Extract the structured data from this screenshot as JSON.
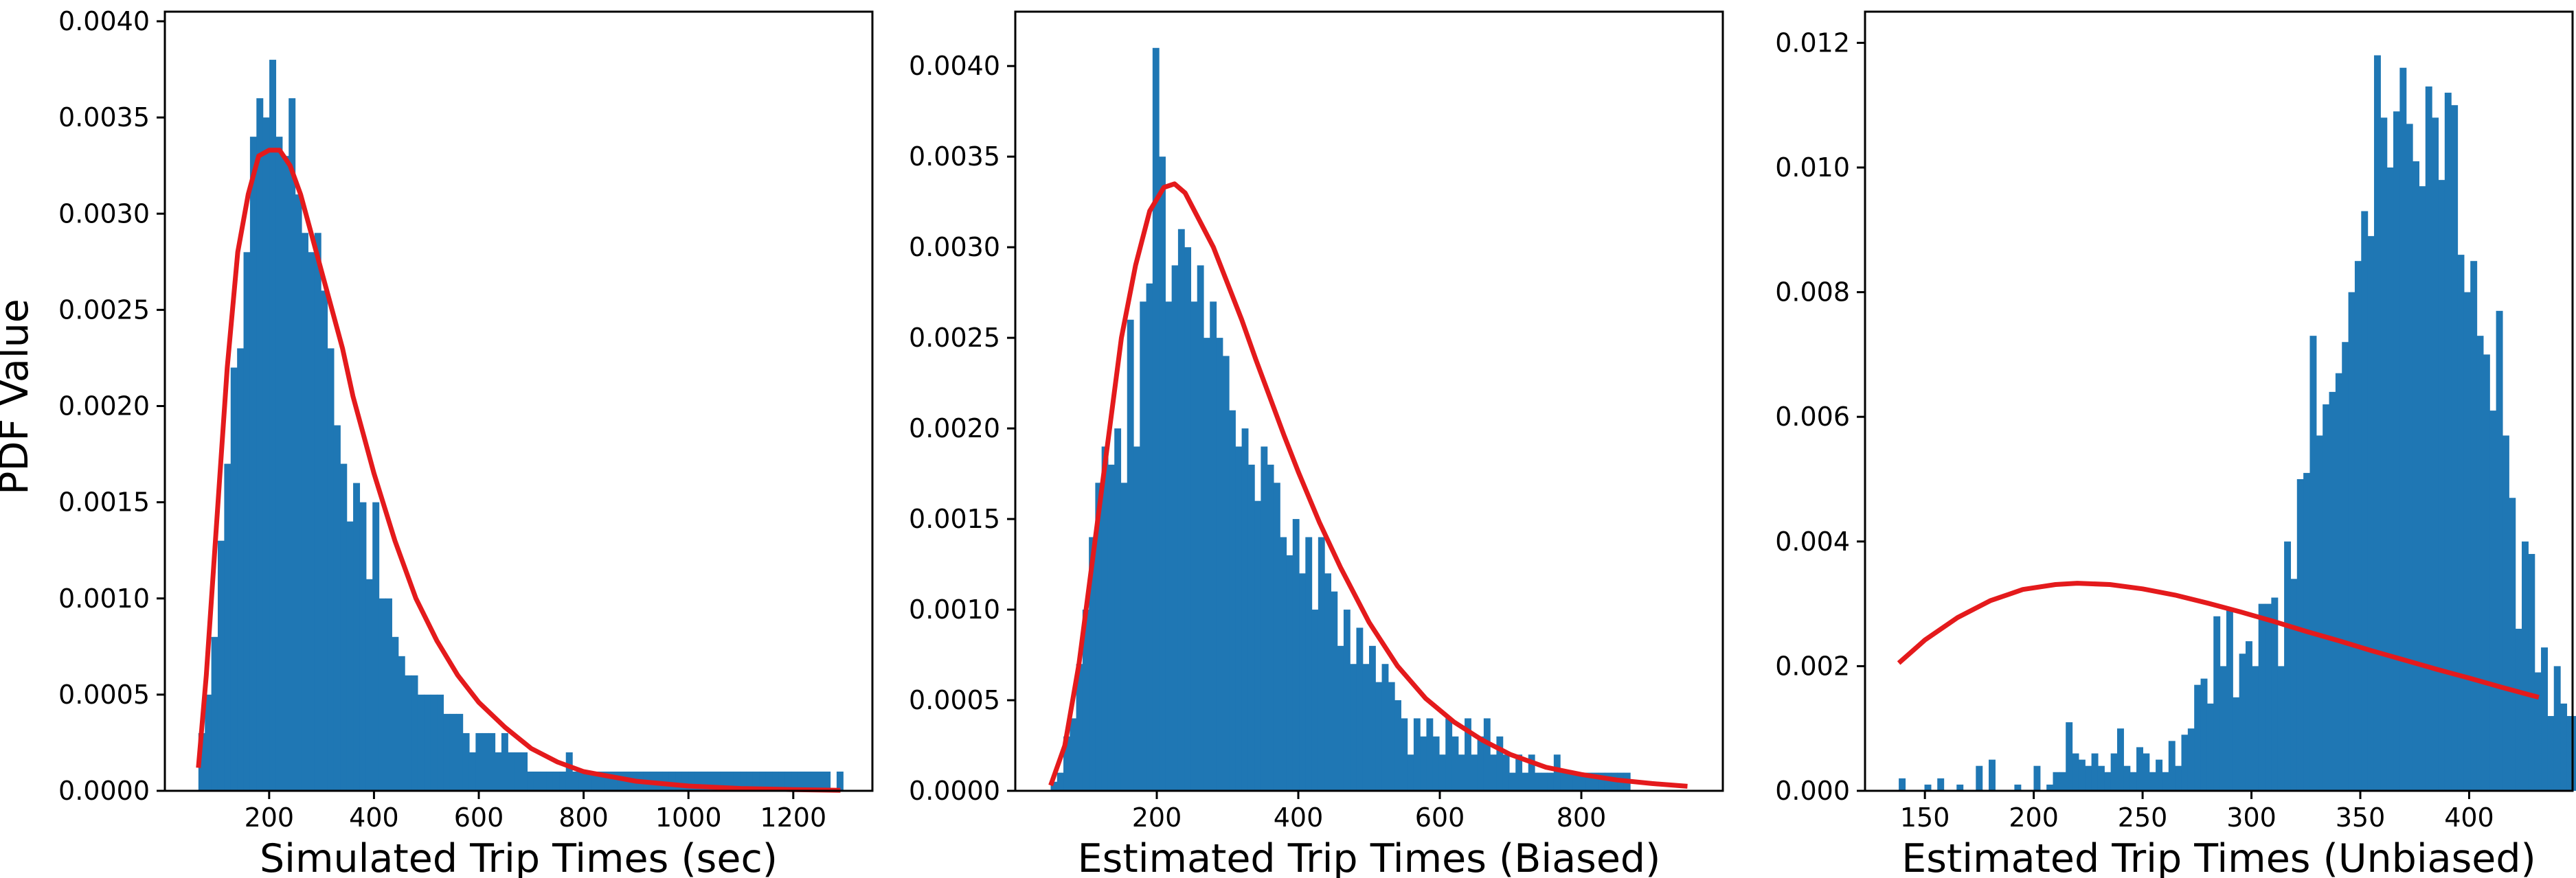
{
  "figure": {
    "ylabel": "PDF Value",
    "colors": {
      "bars": "#1f77b4",
      "curve": "#e41a1c",
      "frame": "#000000"
    }
  },
  "chart_data": [
    {
      "type": "bar",
      "xlabel": "Simulated Trip Times (sec)",
      "ylabel": "PDF Value",
      "xlim": [
        1,
        1351
      ],
      "ylim": [
        0,
        0.00405
      ],
      "xticks": [
        200,
        400,
        600,
        800,
        1000,
        1200
      ],
      "xtick_labels": [
        "200",
        "400",
        "600",
        "800",
        "1000",
        "1200"
      ],
      "yticks": [
        0,
        0.0005,
        0.001,
        0.0015,
        0.002,
        0.0025,
        0.003,
        0.0035,
        0.004
      ],
      "ytick_labels": [
        "0.0000",
        "0.0005",
        "0.0010",
        "0.0015",
        "0.0020",
        "0.0025",
        "0.0030",
        "0.0035",
        "0.0040"
      ],
      "bins": {
        "start": 65,
        "width": 12.3
      },
      "values": [
        0.0003,
        0.0005,
        0.0008,
        0.0013,
        0.0017,
        0.0022,
        0.0023,
        0.0028,
        0.0034,
        0.0036,
        0.0035,
        0.0038,
        0.0034,
        0.0033,
        0.0036,
        0.0031,
        0.0029,
        0.0028,
        0.0029,
        0.0026,
        0.0023,
        0.0019,
        0.0017,
        0.0014,
        0.0016,
        0.0015,
        0.0011,
        0.0015,
        0.001,
        0.001,
        0.0008,
        0.0007,
        0.0006,
        0.0006,
        0.0005,
        0.0005,
        0.0005,
        0.0005,
        0.0004,
        0.0004,
        0.0004,
        0.0003,
        0.0002,
        0.0003,
        0.0003,
        0.0003,
        0.0002,
        0.0003,
        0.0002,
        0.0002,
        0.0002,
        0.0001,
        0.0001,
        0.0001,
        0.0001,
        0.0001,
        0.0001,
        0.0002,
        0.0001,
        0.0001,
        0.0001,
        0.0001,
        0.0001,
        0.0001,
        0.0001,
        0.0001,
        0.0001,
        0.0001,
        0.0001,
        0.0001,
        0.0001,
        0.0001,
        0.0001,
        0.0001,
        0.0001,
        0.0001,
        0.0001,
        0.0001,
        0.0001,
        0.0001,
        0.0001,
        0.0001,
        0.0001,
        0.0001,
        0.0001,
        0.0001,
        0.0001,
        0.0001,
        0.0001,
        0.0001,
        0.0001,
        0.0001,
        0.0001,
        0.0001,
        0.0001,
        0.0001,
        0.0001,
        0.0001,
        0.0,
        0.0001
      ],
      "curve": {
        "x": [
          65,
          80,
          100,
          120,
          140,
          160,
          180,
          200,
          220,
          240,
          260,
          280,
          300,
          320,
          340,
          360,
          380,
          400,
          440,
          480,
          520,
          560,
          600,
          650,
          700,
          750,
          800,
          900,
          1000,
          1100,
          1200,
          1290
        ],
        "y": [
          0.00012,
          0.0006,
          0.0014,
          0.0022,
          0.0028,
          0.0031,
          0.0033,
          0.00333,
          0.00333,
          0.00325,
          0.0031,
          0.0029,
          0.0027,
          0.0025,
          0.0023,
          0.00205,
          0.00185,
          0.00165,
          0.0013,
          0.001,
          0.00078,
          0.0006,
          0.00046,
          0.00033,
          0.00022,
          0.00015,
          0.0001,
          5e-05,
          2.5e-05,
          1.2e-05,
          6e-06,
          3e-06
        ]
      }
    },
    {
      "type": "bar",
      "xlabel": "Estimated Trip Times (Biased)",
      "ylabel": "",
      "xlim": [
        0,
        1000
      ],
      "ylim": [
        0,
        0.0043
      ],
      "xticks": [
        200,
        400,
        600,
        800
      ],
      "xtick_labels": [
        "200",
        "400",
        "600",
        "800"
      ],
      "yticks": [
        0,
        0.0005,
        0.001,
        0.0015,
        0.002,
        0.0025,
        0.003,
        0.0035,
        0.004
      ],
      "ytick_labels": [
        "0.0000",
        "0.0005",
        "0.0010",
        "0.0015",
        "0.0020",
        "0.0025",
        "0.0030",
        "0.0035",
        "0.0040"
      ],
      "bins": {
        "start": 50,
        "width": 9
      },
      "values": [
        5e-05,
        0.0001,
        0.0003,
        0.0004,
        0.0007,
        0.001,
        0.0014,
        0.0017,
        0.0019,
        0.0018,
        0.002,
        0.0017,
        0.0026,
        0.0019,
        0.0027,
        0.0028,
        0.0041,
        0.0035,
        0.0027,
        0.0029,
        0.0031,
        0.003,
        0.0027,
        0.0029,
        0.0025,
        0.0027,
        0.0025,
        0.0024,
        0.0021,
        0.0019,
        0.002,
        0.0018,
        0.0016,
        0.0019,
        0.0018,
        0.0017,
        0.0014,
        0.0013,
        0.0015,
        0.0012,
        0.0014,
        0.001,
        0.0014,
        0.0012,
        0.0011,
        0.0008,
        0.001,
        0.0007,
        0.0009,
        0.0007,
        0.0008,
        0.0006,
        0.0007,
        0.0006,
        0.0005,
        0.0004,
        0.0002,
        0.0004,
        0.0003,
        0.0004,
        0.0003,
        0.0002,
        0.0004,
        0.0003,
        0.0002,
        0.0004,
        0.0002,
        0.0003,
        0.0004,
        0.0002,
        0.0003,
        0.0002,
        0.0001,
        0.0002,
        0.0001,
        0.0002,
        0.0001,
        0.0001,
        0.0001,
        0.0002,
        0.0001,
        0.0001,
        0.0001,
        0.0001,
        0.0001,
        0.0001,
        0.0001,
        0.0001,
        0.0001,
        0.0001,
        0.0001
      ],
      "curve": {
        "x": [
          50,
          70,
          90,
          110,
          130,
          150,
          170,
          190,
          210,
          225,
          240,
          260,
          280,
          300,
          320,
          340,
          360,
          380,
          400,
          430,
          460,
          500,
          540,
          580,
          620,
          660,
          700,
          750,
          800,
          850,
          900,
          950
        ],
        "y": [
          3e-05,
          0.00025,
          0.0007,
          0.0013,
          0.0019,
          0.0025,
          0.0029,
          0.0032,
          0.00333,
          0.00335,
          0.0033,
          0.00315,
          0.003,
          0.0028,
          0.0026,
          0.00238,
          0.00217,
          0.00196,
          0.00176,
          0.00148,
          0.00123,
          0.00093,
          0.00069,
          0.00051,
          0.00038,
          0.00028,
          0.0002,
          0.00013,
          9e-05,
          6e-05,
          4e-05,
          2.5e-05
        ]
      }
    },
    {
      "type": "bar",
      "xlabel": "Estimated Trip Times (Unbiased)",
      "ylabel": "",
      "xlim": [
        122.5,
        447.5
      ],
      "ylim": [
        0,
        0.0125
      ],
      "xticks": [
        150,
        200,
        250,
        300,
        350,
        400
      ],
      "xtick_labels": [
        "150",
        "200",
        "250",
        "300",
        "350",
        "400"
      ],
      "yticks": [
        0,
        0.002,
        0.004,
        0.006,
        0.008,
        0.01,
        0.012
      ],
      "ytick_labels": [
        "0.000",
        "0.002",
        "0.004",
        "0.006",
        "0.008",
        "0.010",
        "0.012"
      ],
      "bins": {
        "start": 138,
        "width": 2.95
      },
      "values": [
        0.0002,
        0.0,
        0.0,
        0.0,
        0.0001,
        0.0,
        0.0002,
        0.0,
        0.0,
        0.0001,
        0.0,
        0.0,
        0.0004,
        0.0,
        0.0005,
        0.0,
        0.0,
        0.0,
        0.0001,
        0.0,
        0.0,
        0.0004,
        0.0,
        0.0001,
        0.0003,
        0.0003,
        0.0011,
        0.0006,
        0.0005,
        0.0004,
        0.0006,
        0.0004,
        0.0003,
        0.0006,
        0.001,
        0.0004,
        0.0003,
        0.0007,
        0.0006,
        0.0003,
        0.0005,
        0.0003,
        0.0008,
        0.0004,
        0.0009,
        0.001,
        0.0017,
        0.0018,
        0.0014,
        0.0028,
        0.002,
        0.0029,
        0.0015,
        0.0022,
        0.0024,
        0.002,
        0.003,
        0.003,
        0.0031,
        0.002,
        0.004,
        0.0034,
        0.005,
        0.0051,
        0.0073,
        0.0057,
        0.0062,
        0.0064,
        0.0067,
        0.0072,
        0.008,
        0.0085,
        0.0093,
        0.0089,
        0.0118,
        0.0108,
        0.01,
        0.0109,
        0.0116,
        0.0107,
        0.0101,
        0.0097,
        0.0113,
        0.0108,
        0.0098,
        0.0112,
        0.011,
        0.0086,
        0.008,
        0.0085,
        0.0073,
        0.007,
        0.0061,
        0.0077,
        0.0057,
        0.0047,
        0.0026,
        0.004,
        0.0038,
        0.0019,
        0.0023,
        0.0012,
        0.002,
        0.0014,
        0.0012,
        0.0012,
        0.0009,
        0.0007,
        0.0004,
        0.0007,
        0.0002,
        0.0005,
        0.0003,
        0.0002,
        0.0,
        0.0,
        0.0003,
        0.0001,
        0.0002,
        0.0003,
        0.0004,
        0.0004,
        0.0006
      ],
      "curve": {
        "x": [
          138,
          150,
          165,
          180,
          195,
          210,
          220,
          235,
          250,
          265,
          280,
          295,
          310,
          325,
          340,
          355,
          370,
          385,
          400,
          415,
          432
        ],
        "y": [
          0.00205,
          0.00242,
          0.00278,
          0.00305,
          0.00323,
          0.00331,
          0.00333,
          0.00331,
          0.00324,
          0.00314,
          0.00301,
          0.00287,
          0.00272,
          0.00256,
          0.00241,
          0.00225,
          0.0021,
          0.00195,
          0.00181,
          0.00166,
          0.0015
        ]
      }
    }
  ]
}
